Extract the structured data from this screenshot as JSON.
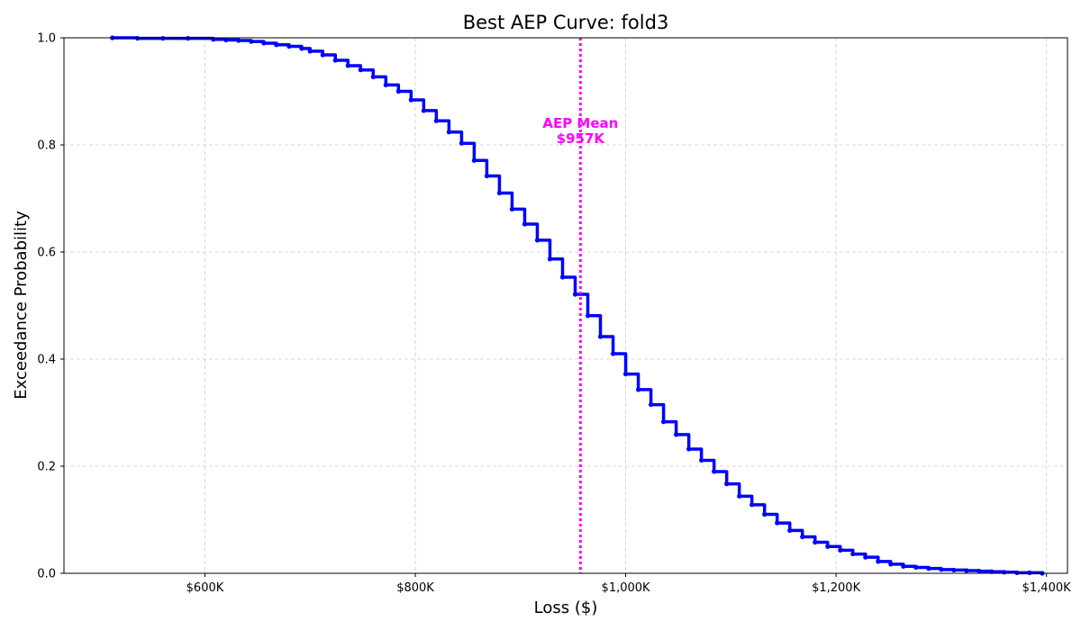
{
  "chart_data": {
    "type": "line",
    "title": "Best AEP Curve: fold3",
    "xlabel": "Loss ($)",
    "ylabel": "Exceedance Probability",
    "xlim": [
      466000,
      1420000
    ],
    "ylim": [
      0,
      1
    ],
    "grid": true,
    "x_ticks": [
      {
        "value": 600000,
        "label": "$600K"
      },
      {
        "value": 800000,
        "label": "$800K"
      },
      {
        "value": 1000000,
        "label": "$1,000K"
      },
      {
        "value": 1200000,
        "label": "$1,200K"
      },
      {
        "value": 1400000,
        "label": "$1,400K"
      }
    ],
    "y_ticks": [
      {
        "value": 0,
        "label": "0.0"
      },
      {
        "value": 0.2,
        "label": "0.2"
      },
      {
        "value": 0.4,
        "label": "0.4"
      },
      {
        "value": 0.6,
        "label": "0.6"
      },
      {
        "value": 0.8,
        "label": "0.8"
      },
      {
        "value": 1.0,
        "label": "1.0"
      }
    ],
    "series": [
      {
        "color": "#0000ff",
        "step": true,
        "points": [
          [
            512000,
            1.0
          ],
          [
            536000,
            0.999
          ],
          [
            560000,
            0.999
          ],
          [
            584000,
            0.999
          ],
          [
            608000,
            0.997
          ],
          [
            620000,
            0.996
          ],
          [
            632000,
            0.995
          ],
          [
            644000,
            0.993
          ],
          [
            656000,
            0.99
          ],
          [
            668000,
            0.987
          ],
          [
            680000,
            0.984
          ],
          [
            692000,
            0.98
          ],
          [
            700000,
            0.975
          ],
          [
            712000,
            0.968
          ],
          [
            724000,
            0.958
          ],
          [
            736000,
            0.948
          ],
          [
            748000,
            0.94
          ],
          [
            760000,
            0.927
          ],
          [
            772000,
            0.912
          ],
          [
            784000,
            0.9
          ],
          [
            796000,
            0.884
          ],
          [
            808000,
            0.864
          ],
          [
            820000,
            0.845
          ],
          [
            832000,
            0.824
          ],
          [
            844000,
            0.803
          ],
          [
            856000,
            0.771
          ],
          [
            868000,
            0.742
          ],
          [
            880000,
            0.71
          ],
          [
            892000,
            0.68
          ],
          [
            904000,
            0.652
          ],
          [
            916000,
            0.622
          ],
          [
            928000,
            0.587
          ],
          [
            940000,
            0.553
          ],
          [
            952000,
            0.521
          ],
          [
            964000,
            0.481
          ],
          [
            976000,
            0.442
          ],
          [
            988000,
            0.41
          ],
          [
            1000000,
            0.372
          ],
          [
            1012000,
            0.343
          ],
          [
            1024000,
            0.315
          ],
          [
            1036000,
            0.283
          ],
          [
            1048000,
            0.259
          ],
          [
            1060000,
            0.232
          ],
          [
            1072000,
            0.211
          ],
          [
            1084000,
            0.19
          ],
          [
            1096000,
            0.167
          ],
          [
            1108000,
            0.144
          ],
          [
            1120000,
            0.128
          ],
          [
            1132000,
            0.11
          ],
          [
            1144000,
            0.094
          ],
          [
            1156000,
            0.08
          ],
          [
            1168000,
            0.068
          ],
          [
            1180000,
            0.058
          ],
          [
            1192000,
            0.05
          ],
          [
            1204000,
            0.043
          ],
          [
            1216000,
            0.036
          ],
          [
            1228000,
            0.03
          ],
          [
            1240000,
            0.022
          ],
          [
            1252000,
            0.017
          ],
          [
            1264000,
            0.013
          ],
          [
            1276000,
            0.011
          ],
          [
            1288000,
            0.009
          ],
          [
            1300000,
            0.007
          ],
          [
            1312000,
            0.006
          ],
          [
            1324000,
            0.005
          ],
          [
            1336000,
            0.004
          ],
          [
            1348000,
            0.003
          ],
          [
            1360000,
            0.002
          ],
          [
            1372000,
            0.001
          ],
          [
            1384000,
            0.001
          ],
          [
            1396000,
            0.0
          ]
        ]
      }
    ],
    "annotations": [
      {
        "type": "vline",
        "x": 957000,
        "color": "#ff00ff",
        "style": "dotted",
        "text_line1": "AEP Mean",
        "text_line2": "$957K",
        "text_y": 0.83
      }
    ]
  }
}
